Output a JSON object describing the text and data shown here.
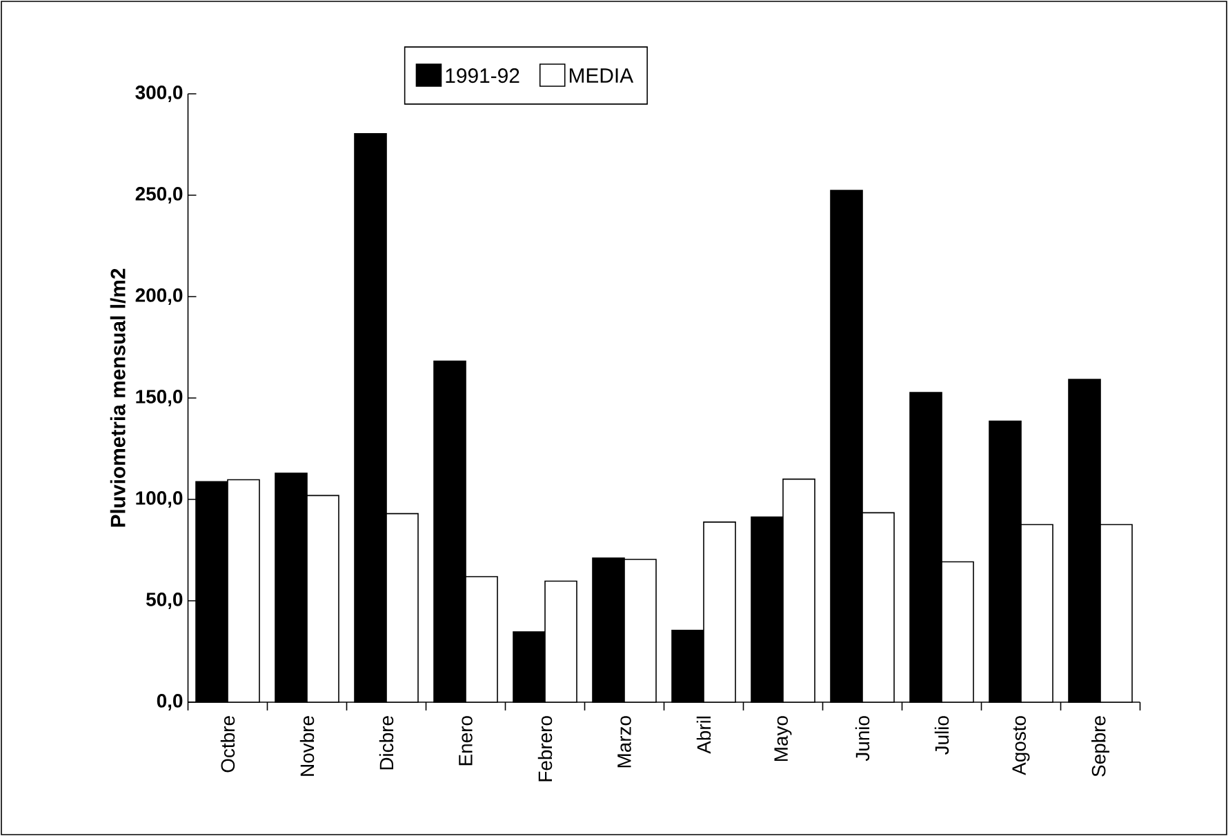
{
  "chart_data": {
    "type": "bar",
    "ylabel": "Pluviometria mensual l/m2",
    "categories": [
      "Octbre",
      "Novbre",
      "Dicbre",
      "Enero",
      "Febrero",
      "Marzo",
      "Abril",
      "Mayo",
      "Junio",
      "Julio",
      "Agosto",
      "Sepbre"
    ],
    "series": [
      {
        "name": "1991-92",
        "color": "#000000",
        "values": [
          108.7,
          112.9,
          280.3,
          168.2,
          34.7,
          71.1,
          35.4,
          91.3,
          252.4,
          152.7,
          138.6,
          159.2
        ]
      },
      {
        "name": "MEDIA",
        "color": "#ffffff",
        "values": [
          109.7,
          101.9,
          93.0,
          61.9,
          59.7,
          70.4,
          88.8,
          110.0,
          93.4,
          69.2,
          87.6,
          87.6
        ]
      }
    ],
    "ylim": [
      0,
      300
    ],
    "yticks": [
      {
        "value": 0,
        "label": "0,0"
      },
      {
        "value": 50,
        "label": "50,0"
      },
      {
        "value": 100,
        "label": "100,0"
      },
      {
        "value": 150,
        "label": "150,0"
      },
      {
        "value": 200,
        "label": "200,0"
      },
      {
        "value": 250,
        "label": "250,0"
      },
      {
        "value": 300,
        "label": "300,0"
      }
    ],
    "grid": false,
    "legend": "top"
  }
}
